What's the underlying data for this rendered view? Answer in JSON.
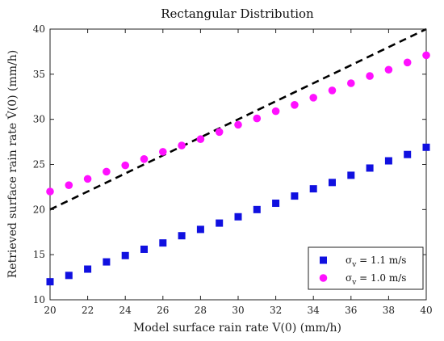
{
  "chart_data": {
    "type": "scatter",
    "title": "Rectangular Distribution",
    "xlabel": "Model surface rain rate V(0) (mm/h)",
    "ylabel": "Retrieved surface rain rate V̂(0) (mm/h)",
    "xlim": [
      20,
      40
    ],
    "ylim": [
      10,
      40
    ],
    "xticks": [
      "20",
      "22",
      "24",
      "26",
      "28",
      "30",
      "32",
      "34",
      "36",
      "38",
      "40"
    ],
    "yticks": [
      "10",
      "15",
      "20",
      "25",
      "30",
      "35",
      "40"
    ],
    "grid": false,
    "legend_position": "bottom-right",
    "reference_line": {
      "style": "dashed",
      "color": "#000000",
      "x": [
        20,
        40
      ],
      "y": [
        20,
        40
      ]
    },
    "series": [
      {
        "name": "σv = 1.1 m/s",
        "legend_symbol": "σ",
        "legend_subscript": "v",
        "legend_rest": " = 1.1 m/s",
        "marker": "square",
        "color": "#1010e0",
        "x": [
          20,
          21,
          22,
          23,
          24,
          25,
          26,
          27,
          28,
          29,
          30,
          31,
          32,
          33,
          34,
          35,
          36,
          37,
          38,
          39,
          40
        ],
        "y": [
          12.0,
          12.7,
          13.4,
          14.2,
          14.9,
          15.6,
          16.3,
          17.1,
          17.8,
          18.5,
          19.2,
          20.0,
          20.7,
          21.5,
          22.3,
          23.0,
          23.8,
          24.6,
          25.4,
          26.1,
          26.9
        ]
      },
      {
        "name": "σv = 1.0 m/s",
        "legend_symbol": "σ",
        "legend_subscript": "v",
        "legend_rest": " = 1.0 m/s",
        "marker": "circle",
        "color": "#ff10ff",
        "x": [
          20,
          21,
          22,
          23,
          24,
          25,
          26,
          27,
          28,
          29,
          30,
          31,
          32,
          33,
          34,
          35,
          36,
          37,
          38,
          39,
          40
        ],
        "y": [
          22.0,
          22.7,
          23.4,
          24.2,
          24.9,
          25.6,
          26.4,
          27.1,
          27.8,
          28.6,
          29.4,
          30.1,
          30.9,
          31.6,
          32.4,
          33.2,
          34.0,
          34.8,
          35.5,
          36.3,
          37.1
        ]
      }
    ]
  }
}
